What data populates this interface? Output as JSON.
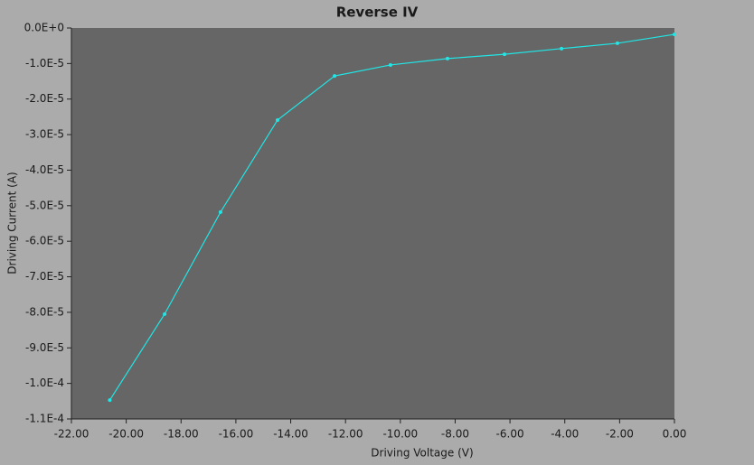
{
  "chart_data": {
    "type": "line",
    "title": "Reverse IV",
    "x_label": "Driving Voltage (V)",
    "y_label": "Driving Current (A)",
    "x": [
      -20.6,
      -18.6,
      -16.56,
      -14.48,
      -12.4,
      -10.36,
      -8.28,
      -6.2,
      -4.12,
      -2.08,
      0
    ],
    "series": [
      {
        "name": "Reverse IV",
        "color": "#20e6e6",
        "values": [
          -0.0001047,
          -8.05e-05,
          -5.18e-05,
          -2.59e-05,
          -1.35e-05,
          -1.04e-05,
          -8.6e-06,
          -7.4e-06,
          -5.8e-06,
          -4.3e-06,
          -1.8e-06
        ]
      }
    ],
    "xlim": [
      -22,
      0
    ],
    "xticks": [
      {
        "value": -22,
        "label": "-22.00"
      },
      {
        "value": -20,
        "label": "-20.00"
      },
      {
        "value": -18,
        "label": "-18.00"
      },
      {
        "value": -16,
        "label": "-16.00"
      },
      {
        "value": -14,
        "label": "-14.00"
      },
      {
        "value": -12,
        "label": "-12.00"
      },
      {
        "value": -10,
        "label": "-10.00"
      },
      {
        "value": -8,
        "label": "-8.00"
      },
      {
        "value": -6,
        "label": "-6.00"
      },
      {
        "value": -4,
        "label": "-4.00"
      },
      {
        "value": -2,
        "label": "-2.00"
      },
      {
        "value": 0,
        "label": "0.00"
      }
    ],
    "ylim": [
      -0.00011,
      0
    ],
    "yticks": [
      {
        "value": 0,
        "label": "0.0E+0"
      },
      {
        "value": -1e-05,
        "label": "-1.0E-5"
      },
      {
        "value": -2e-05,
        "label": "-2.0E-5"
      },
      {
        "value": -3e-05,
        "label": "-3.0E-5"
      },
      {
        "value": -4e-05,
        "label": "-4.0E-5"
      },
      {
        "value": -5e-05,
        "label": "-5.0E-5"
      },
      {
        "value": -6e-05,
        "label": "-6.0E-5"
      },
      {
        "value": -7e-05,
        "label": "-7.0E-5"
      },
      {
        "value": -8e-05,
        "label": "-8.0E-5"
      },
      {
        "value": -9e-05,
        "label": "-9.0E-5"
      },
      {
        "value": -0.0001,
        "label": "-1.0E-4"
      },
      {
        "value": -0.00011,
        "label": "-1.1E-4"
      }
    ],
    "grid": false
  }
}
